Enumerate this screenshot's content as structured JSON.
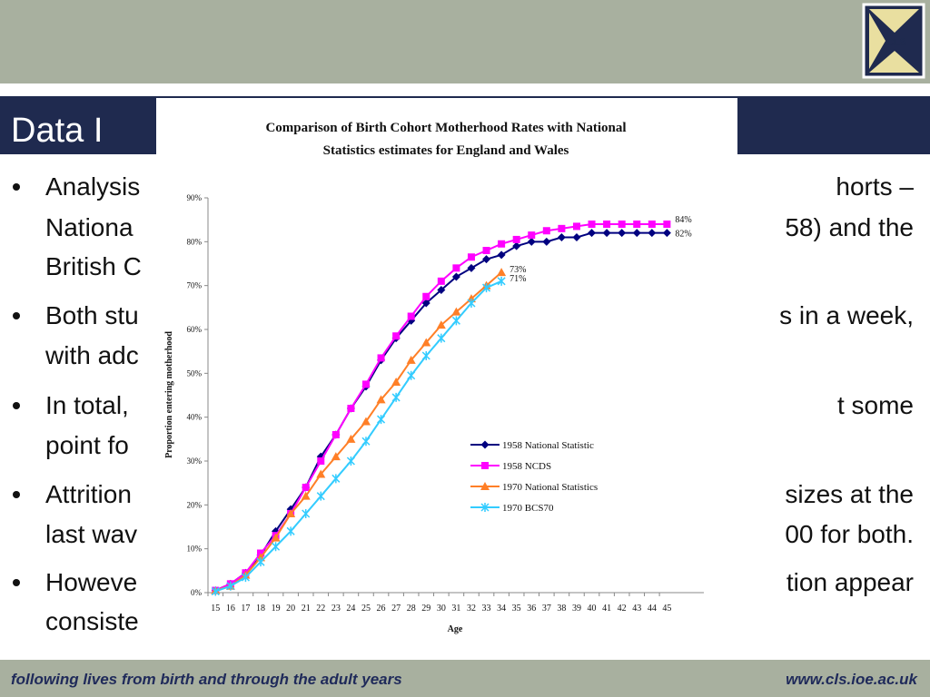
{
  "header": {
    "title": "Data I",
    "logo": "CLS"
  },
  "bullets": [
    {
      "lines": [
        {
          "left": "Analysis",
          "right": "horts –"
        },
        {
          "left": "Nationa",
          "right": "58) and the"
        },
        {
          "left": "British C"
        }
      ]
    },
    {
      "lines": [
        {
          "left": "Both stu",
          "right": "s in a week,"
        },
        {
          "left": "with adc"
        }
      ]
    },
    {
      "lines": [
        {
          "left": "In total,",
          "right": "t some"
        },
        {
          "left": "point fo"
        }
      ]
    },
    {
      "lines": [
        {
          "left": "Attrition",
          "right": "sizes at the"
        },
        {
          "left": "last wav",
          "right": "00 for both."
        }
      ]
    },
    {
      "lines": [
        {
          "left": "Howeve",
          "right": "tion appear"
        },
        {
          "left": "consiste"
        }
      ]
    }
  ],
  "footer": {
    "left": "following lives from birth and through the adult years",
    "right": "www.cls.ioe.ac.uk"
  },
  "chart_data": {
    "type": "line",
    "title": [
      "Comparison of Birth Cohort Motherhood Rates with National",
      "Statistics estimates for England and Wales"
    ],
    "x_label": "Age",
    "y_label": "Proportion entering motherhood",
    "categories": [
      "15",
      "16",
      "17",
      "18",
      "19",
      "20",
      "21",
      "22",
      "23",
      "24",
      "25",
      "26",
      "27",
      "28",
      "29",
      "30",
      "31",
      "32",
      "33",
      "34",
      "35",
      "36",
      "37",
      "38",
      "39",
      "40",
      "41",
      "42",
      "43",
      "44",
      "45"
    ],
    "ylim": [
      0,
      90
    ],
    "yticks": [
      {
        "value": 0,
        "label": "0%"
      },
      {
        "value": 10,
        "label": "10%"
      },
      {
        "value": 20,
        "label": "20%"
      },
      {
        "value": 30,
        "label": "30%"
      },
      {
        "value": 40,
        "label": "40%"
      },
      {
        "value": 50,
        "label": "50%"
      },
      {
        "value": 60,
        "label": "60%"
      },
      {
        "value": 70,
        "label": "70%"
      },
      {
        "value": 80,
        "label": "80%"
      },
      {
        "value": 90,
        "label": "90%"
      }
    ],
    "grid": false,
    "legend": "center-right",
    "series": [
      {
        "name": "1958 National Statistic",
        "color": "#000080",
        "marker": "diamond",
        "values": [
          0.5,
          2,
          4.5,
          8.5,
          14,
          19,
          24,
          31,
          36,
          42,
          47,
          53,
          58,
          62,
          66,
          69,
          72,
          74,
          76,
          77,
          79,
          80,
          80,
          81,
          81,
          82,
          82,
          82,
          82,
          82,
          82
        ],
        "value_labels": [
          null,
          null,
          null,
          null,
          null,
          null,
          null,
          null,
          null,
          null,
          null,
          null,
          null,
          null,
          null,
          null,
          null,
          null,
          null,
          null,
          null,
          null,
          null,
          null,
          null,
          null,
          null,
          null,
          null,
          null,
          "82%"
        ]
      },
      {
        "name": "1958 NCDS",
        "color": "#ff00ff",
        "marker": "square",
        "values": [
          0.5,
          2,
          4.5,
          9,
          13,
          18,
          24,
          30,
          36,
          42,
          47.5,
          53.5,
          58.5,
          63,
          67.5,
          71,
          74,
          76.5,
          78,
          79.5,
          80.5,
          81.5,
          82.5,
          83,
          83.5,
          84,
          84,
          84,
          84,
          84,
          84
        ],
        "value_labels": [
          null,
          null,
          null,
          null,
          null,
          null,
          null,
          null,
          null,
          null,
          null,
          null,
          null,
          null,
          null,
          null,
          null,
          null,
          null,
          null,
          null,
          null,
          null,
          null,
          null,
          null,
          null,
          null,
          null,
          null,
          "84%"
        ]
      },
      {
        "name": "1970 National Statistics",
        "color": "#ff7f27",
        "marker": "triangle",
        "values": [
          0.5,
          1.5,
          4,
          8,
          12.5,
          18,
          22,
          27,
          31,
          35,
          39,
          44,
          48,
          53,
          57,
          61,
          64,
          67,
          70,
          73,
          null,
          null,
          null,
          null,
          null,
          null,
          null,
          null,
          null,
          null,
          null
        ],
        "value_labels": [
          null,
          null,
          null,
          null,
          null,
          null,
          null,
          null,
          null,
          null,
          null,
          null,
          null,
          null,
          null,
          null,
          null,
          null,
          null,
          "73%",
          null,
          null,
          null,
          null,
          null,
          null,
          null,
          null,
          null,
          null,
          null
        ]
      },
      {
        "name": "1970 BCS70",
        "color": "#33ccff",
        "marker": "star",
        "values": [
          0.3,
          1.5,
          3.5,
          7,
          10.5,
          14,
          18,
          22,
          26,
          30,
          34.5,
          39.5,
          44.5,
          49.5,
          54,
          58,
          62,
          66,
          69.5,
          71,
          null,
          null,
          null,
          null,
          null,
          null,
          null,
          null,
          null,
          null,
          null
        ],
        "value_labels": [
          null,
          null,
          null,
          null,
          null,
          null,
          null,
          null,
          null,
          null,
          null,
          null,
          null,
          null,
          null,
          null,
          null,
          null,
          null,
          "71%",
          null,
          null,
          null,
          null,
          null,
          null,
          null,
          null,
          null,
          null,
          null
        ]
      }
    ]
  }
}
